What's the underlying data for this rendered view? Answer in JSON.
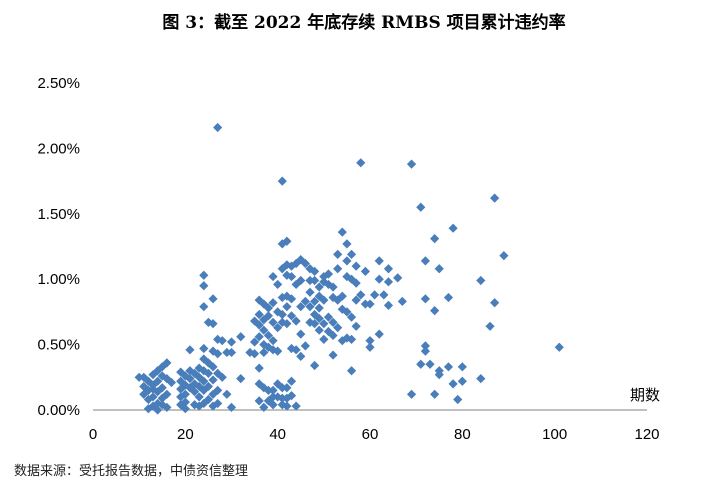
{
  "chart_data": {
    "type": "scatter",
    "title": "图 3：截至 2022 年底存续 RMBS 项目累计违约率",
    "xlabel": "期数",
    "ylabel": "",
    "xlim": [
      0,
      120
    ],
    "ylim": [
      0,
      0.025
    ],
    "x_ticks": [
      0,
      20,
      40,
      60,
      80,
      100,
      120
    ],
    "y_ticks": [
      0,
      0.005,
      0.01,
      0.015,
      0.02,
      0.025
    ],
    "x_tick_labels": [
      "0",
      "20",
      "40",
      "60",
      "80",
      "100",
      "120"
    ],
    "y_tick_labels": [
      "0.00%",
      "0.50%",
      "1.00%",
      "1.50%",
      "2.00%",
      "2.50%"
    ],
    "grid": false,
    "legend": "none",
    "marker": "diamond",
    "marker_color": "#4a7ebb",
    "points": [
      [
        10,
        0.0025
      ],
      [
        11,
        0.0018
      ],
      [
        11,
        0.0012
      ],
      [
        12,
        0.0022
      ],
      [
        12,
        0.0015
      ],
      [
        12,
        0.0008
      ],
      [
        13,
        0.0027
      ],
      [
        13,
        0.0019
      ],
      [
        13,
        0.001
      ],
      [
        13,
        0.0003
      ],
      [
        14,
        0.003
      ],
      [
        14,
        0.0022
      ],
      [
        14,
        0.0014
      ],
      [
        14,
        0.0005
      ],
      [
        15,
        0.0033
      ],
      [
        15,
        0.0026
      ],
      [
        15,
        0.0017
      ],
      [
        15,
        0.0009
      ],
      [
        16,
        0.0036
      ],
      [
        16,
        0.0024
      ],
      [
        16,
        0.0012
      ],
      [
        16,
        0.0002
      ],
      [
        12,
        0.0001
      ],
      [
        14,
        0.0
      ],
      [
        17,
        0.0021
      ],
      [
        11,
        0.0025
      ],
      [
        15,
        0.0004
      ],
      [
        13,
        0.0016
      ],
      [
        19,
        0.0029
      ],
      [
        19,
        0.0022
      ],
      [
        19,
        0.0016
      ],
      [
        19,
        0.001
      ],
      [
        19,
        0.0004
      ],
      [
        20,
        0.0026
      ],
      [
        20,
        0.0019
      ],
      [
        20,
        0.0012
      ],
      [
        20,
        0.0006
      ],
      [
        20,
        0.0001
      ],
      [
        21,
        0.003
      ],
      [
        21,
        0.0024
      ],
      [
        21,
        0.0017
      ],
      [
        21,
        0.0046
      ],
      [
        22,
        0.0028
      ],
      [
        22,
        0.002
      ],
      [
        22,
        0.0014
      ],
      [
        22,
        0.0004
      ],
      [
        23,
        0.0032
      ],
      [
        23,
        0.0025
      ],
      [
        23,
        0.0018
      ],
      [
        23,
        0.001
      ],
      [
        23,
        0.0003
      ],
      [
        24,
        0.0103
      ],
      [
        24,
        0.0095
      ],
      [
        24,
        0.0079
      ],
      [
        24,
        0.0047
      ],
      [
        24,
        0.0039
      ],
      [
        24,
        0.003
      ],
      [
        24,
        0.0022
      ],
      [
        24,
        0.0015
      ],
      [
        24,
        0.0005
      ],
      [
        25,
        0.0067
      ],
      [
        25,
        0.0036
      ],
      [
        25,
        0.0028
      ],
      [
        25,
        0.0018
      ],
      [
        25,
        0.0008
      ],
      [
        26,
        0.0085
      ],
      [
        26,
        0.0066
      ],
      [
        26,
        0.0045
      ],
      [
        26,
        0.0033
      ],
      [
        26,
        0.0023
      ],
      [
        26,
        0.0012
      ],
      [
        26,
        0.0003
      ],
      [
        27,
        0.0216
      ],
      [
        27,
        0.0054
      ],
      [
        27,
        0.0043
      ],
      [
        27,
        0.0028
      ],
      [
        27,
        0.0015
      ],
      [
        27,
        0.0005
      ],
      [
        28,
        0.0053
      ],
      [
        28,
        0.0025
      ],
      [
        29,
        0.0044
      ],
      [
        29,
        0.0012
      ],
      [
        30,
        0.0052
      ],
      [
        30,
        0.0044
      ],
      [
        30,
        0.0002
      ],
      [
        32,
        0.0056
      ],
      [
        32,
        0.0024
      ],
      [
        34,
        0.0044
      ],
      [
        35,
        0.0068
      ],
      [
        35,
        0.0052
      ],
      [
        35,
        0.0043
      ],
      [
        36,
        0.0084
      ],
      [
        36,
        0.0073
      ],
      [
        36,
        0.0065
      ],
      [
        36,
        0.0056
      ],
      [
        36,
        0.0032
      ],
      [
        36,
        0.002
      ],
      [
        36,
        0.0007
      ],
      [
        37,
        0.0081
      ],
      [
        37,
        0.0069
      ],
      [
        37,
        0.0061
      ],
      [
        37,
        0.005
      ],
      [
        37,
        0.0044
      ],
      [
        37,
        0.0017
      ],
      [
        37,
        0.0002
      ],
      [
        38,
        0.0078
      ],
      [
        38,
        0.0072
      ],
      [
        38,
        0.0057
      ],
      [
        38,
        0.0048
      ],
      [
        38,
        0.0015
      ],
      [
        38,
        0.0007
      ],
      [
        39,
        0.0102
      ],
      [
        39,
        0.0082
      ],
      [
        39,
        0.0067
      ],
      [
        39,
        0.0053
      ],
      [
        39,
        0.0046
      ],
      [
        39,
        0.0015
      ],
      [
        39,
        0.001
      ],
      [
        39,
        0.0004
      ],
      [
        40,
        0.0096
      ],
      [
        40,
        0.0075
      ],
      [
        40,
        0.0063
      ],
      [
        40,
        0.0045
      ],
      [
        40,
        0.002
      ],
      [
        40,
        0.001
      ],
      [
        41,
        0.0175
      ],
      [
        41,
        0.0127
      ],
      [
        41,
        0.0108
      ],
      [
        41,
        0.0086
      ],
      [
        41,
        0.0073
      ],
      [
        41,
        0.0067
      ],
      [
        41,
        0.0017
      ],
      [
        41,
        0.0009
      ],
      [
        41,
        0.0004
      ],
      [
        42,
        0.0129
      ],
      [
        42,
        0.0111
      ],
      [
        42,
        0.0103
      ],
      [
        42,
        0.0087
      ],
      [
        42,
        0.0079
      ],
      [
        42,
        0.0066
      ],
      [
        42,
        0.0017
      ],
      [
        42,
        0.0009
      ],
      [
        42,
        0.0003
      ],
      [
        43,
        0.011
      ],
      [
        43,
        0.0102
      ],
      [
        43,
        0.0085
      ],
      [
        43,
        0.0072
      ],
      [
        43,
        0.0047
      ],
      [
        43,
        0.0022
      ],
      [
        43,
        0.0011
      ],
      [
        44,
        0.0112
      ],
      [
        44,
        0.0096
      ],
      [
        44,
        0.0068
      ],
      [
        44,
        0.0046
      ],
      [
        44,
        0.0003
      ],
      [
        45,
        0.0115
      ],
      [
        45,
        0.0099
      ],
      [
        45,
        0.0079
      ],
      [
        45,
        0.0058
      ],
      [
        45,
        0.0041
      ],
      [
        46,
        0.0112
      ],
      [
        46,
        0.0083
      ],
      [
        46,
        0.0049
      ],
      [
        47,
        0.0108
      ],
      [
        47,
        0.0099
      ],
      [
        47,
        0.009
      ],
      [
        47,
        0.0079
      ],
      [
        47,
        0.0067
      ],
      [
        48,
        0.0106
      ],
      [
        48,
        0.0099
      ],
      [
        48,
        0.0083
      ],
      [
        48,
        0.0073
      ],
      [
        48,
        0.0066
      ],
      [
        48,
        0.0034
      ],
      [
        49,
        0.0094
      ],
      [
        49,
        0.0087
      ],
      [
        49,
        0.0078
      ],
      [
        49,
        0.007
      ],
      [
        49,
        0.0061
      ],
      [
        50,
        0.0102
      ],
      [
        50,
        0.0098
      ],
      [
        50,
        0.0084
      ],
      [
        50,
        0.0066
      ],
      [
        50,
        0.0054
      ],
      [
        51,
        0.0104
      ],
      [
        51,
        0.0096
      ],
      [
        51,
        0.0071
      ],
      [
        51,
        0.006
      ],
      [
        52,
        0.0094
      ],
      [
        52,
        0.0086
      ],
      [
        52,
        0.0067
      ],
      [
        52,
        0.0057
      ],
      [
        52,
        0.0042
      ],
      [
        53,
        0.0119
      ],
      [
        53,
        0.0108
      ],
      [
        53,
        0.0084
      ],
      [
        53,
        0.0063
      ],
      [
        54,
        0.0136
      ],
      [
        54,
        0.0087
      ],
      [
        54,
        0.0077
      ],
      [
        54,
        0.0053
      ],
      [
        55,
        0.0127
      ],
      [
        55,
        0.0114
      ],
      [
        55,
        0.0102
      ],
      [
        55,
        0.0075
      ],
      [
        55,
        0.0055
      ],
      [
        56,
        0.0119
      ],
      [
        56,
        0.01
      ],
      [
        56,
        0.0071
      ],
      [
        56,
        0.0054
      ],
      [
        56,
        0.003
      ],
      [
        57,
        0.011
      ],
      [
        57,
        0.0097
      ],
      [
        57,
        0.0084
      ],
      [
        57,
        0.0064
      ],
      [
        58,
        0.0189
      ],
      [
        58,
        0.0088
      ],
      [
        59,
        0.0106
      ],
      [
        59,
        0.0081
      ],
      [
        60,
        0.0081
      ],
      [
        60,
        0.0053
      ],
      [
        60,
        0.0048
      ],
      [
        61,
        0.0088
      ],
      [
        62,
        0.0114
      ],
      [
        62,
        0.01
      ],
      [
        62,
        0.0058
      ],
      [
        63,
        0.0088
      ],
      [
        64,
        0.0108
      ],
      [
        64,
        0.0098
      ],
      [
        64,
        0.008
      ],
      [
        66,
        0.0101
      ],
      [
        67,
        0.0083
      ],
      [
        69,
        0.0188
      ],
      [
        69,
        0.0012
      ],
      [
        71,
        0.0155
      ],
      [
        71,
        0.0035
      ],
      [
        72,
        0.0114
      ],
      [
        72,
        0.0085
      ],
      [
        72,
        0.0049
      ],
      [
        72,
        0.0045
      ],
      [
        73,
        0.0035
      ],
      [
        74,
        0.0131
      ],
      [
        74,
        0.0076
      ],
      [
        74,
        0.0012
      ],
      [
        75,
        0.0108
      ],
      [
        75,
        0.003
      ],
      [
        75,
        0.0027
      ],
      [
        77,
        0.0086
      ],
      [
        77,
        0.0033
      ],
      [
        78,
        0.0139
      ],
      [
        78,
        0.002
      ],
      [
        79,
        0.0008
      ],
      [
        80,
        0.0033
      ],
      [
        80,
        0.0022
      ],
      [
        84,
        0.0099
      ],
      [
        84,
        0.0024
      ],
      [
        86,
        0.0064
      ],
      [
        87,
        0.0162
      ],
      [
        87,
        0.0082
      ],
      [
        89,
        0.0118
      ],
      [
        101,
        0.0048
      ]
    ]
  },
  "source": "数据来源：受托报告数据，中债资信整理"
}
